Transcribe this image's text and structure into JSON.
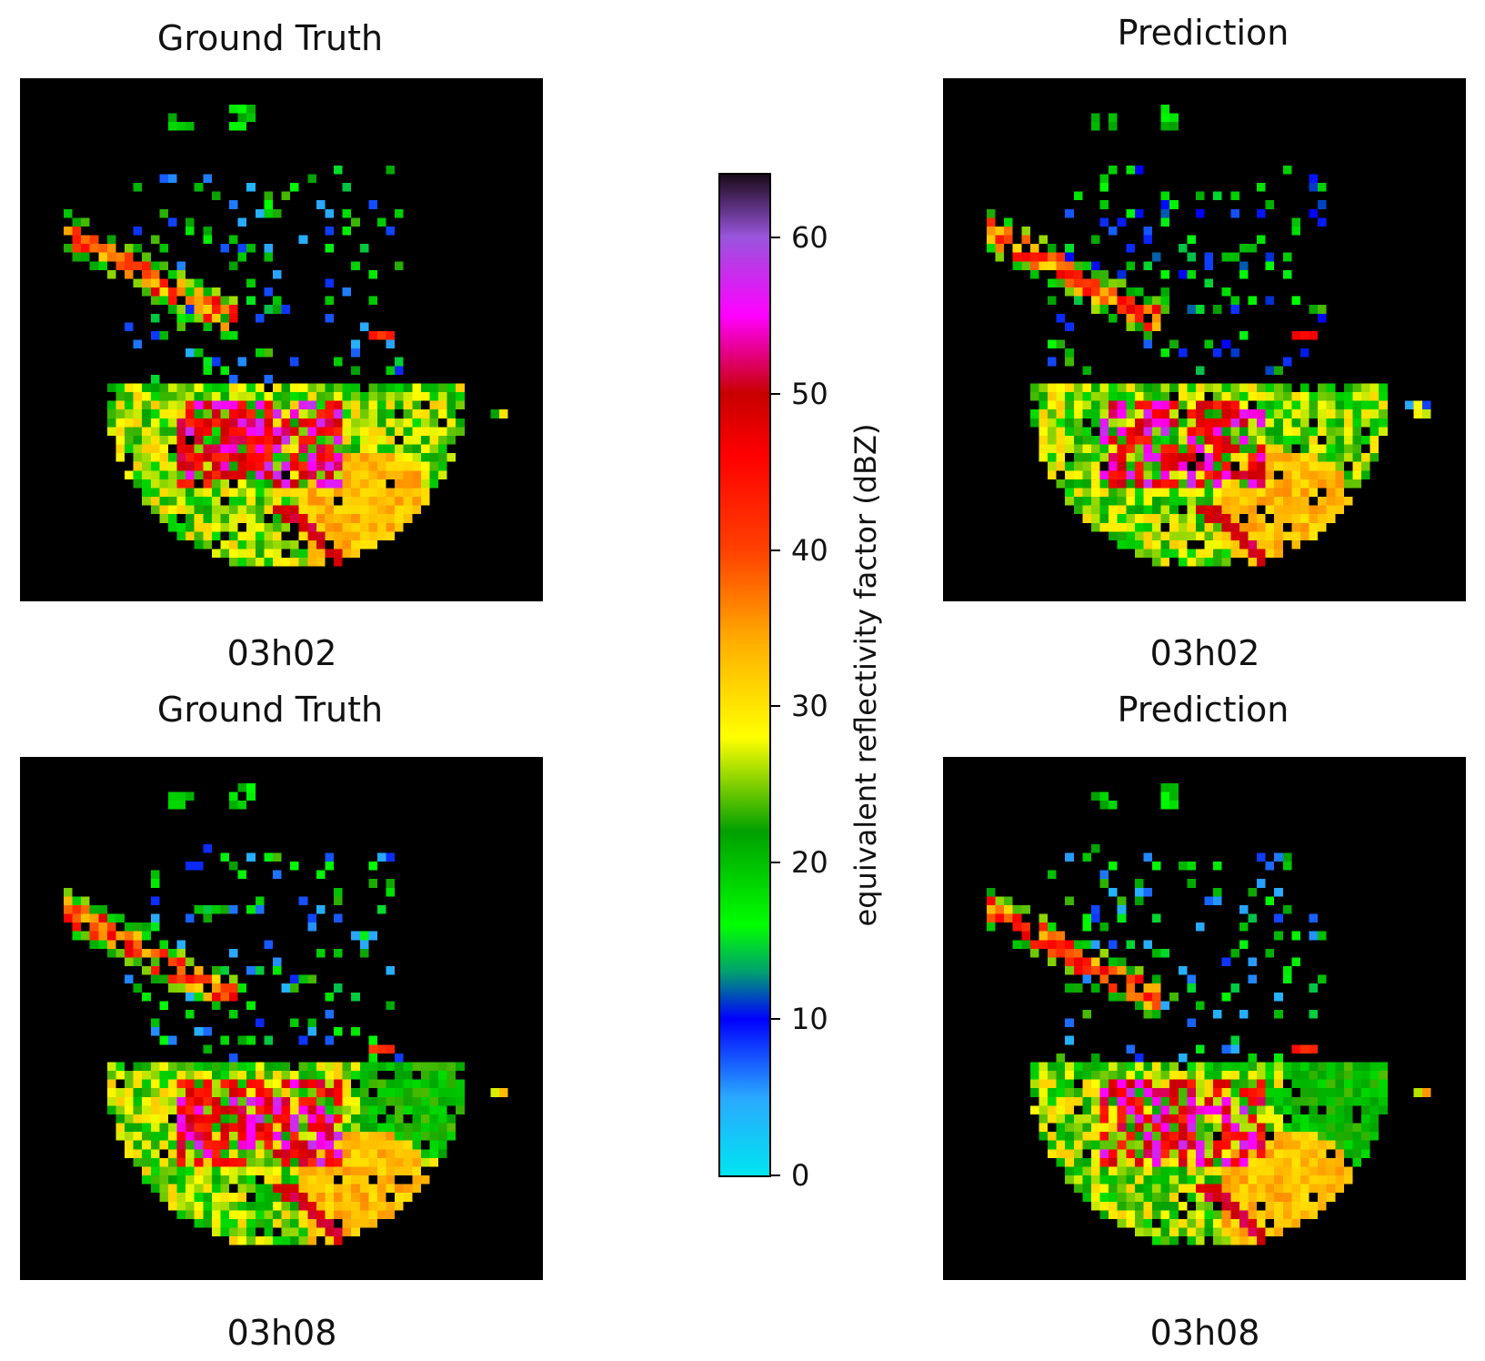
{
  "chart_data": [
    {
      "type": "heatmap",
      "title": "Ground Truth",
      "caption": "03h02",
      "colormap_description": "radar reflectivity (cyan-blue-green-yellow-orange-red-magenta-purple)"
    },
    {
      "type": "heatmap",
      "title": "Prediction",
      "caption": "03h02",
      "colormap_description": "radar reflectivity (cyan-blue-green-yellow-orange-red-magenta-purple)"
    },
    {
      "type": "heatmap",
      "title": "Ground Truth",
      "caption": "03h08",
      "colormap_description": "radar reflectivity (cyan-blue-green-yellow-orange-red-magenta-purple)"
    },
    {
      "type": "heatmap",
      "title": "Prediction",
      "caption": "03h08",
      "colormap_description": "radar reflectivity (cyan-blue-green-yellow-orange-red-magenta-purple)"
    }
  ],
  "colorbar": {
    "label": "equivalent reflectivity factor (dBZ)",
    "range": [
      0,
      64
    ],
    "ticks": [
      0,
      10,
      20,
      30,
      40,
      50,
      60
    ],
    "tick_labels": [
      "0",
      "10",
      "20",
      "30",
      "40",
      "50",
      "60"
    ],
    "stops": [
      {
        "value": 0,
        "color": "#00e5f0"
      },
      {
        "value": 5,
        "color": "#2aa8ff"
      },
      {
        "value": 10,
        "color": "#0000ff"
      },
      {
        "value": 13,
        "color": "#00a070"
      },
      {
        "value": 16,
        "color": "#00ff00"
      },
      {
        "value": 22,
        "color": "#00a000"
      },
      {
        "value": 28,
        "color": "#ffff00"
      },
      {
        "value": 34,
        "color": "#ffb000"
      },
      {
        "value": 40,
        "color": "#ff4000"
      },
      {
        "value": 46,
        "color": "#ff0000"
      },
      {
        "value": 50,
        "color": "#c80000"
      },
      {
        "value": 55,
        "color": "#ff00ff"
      },
      {
        "value": 60,
        "color": "#9955dd"
      },
      {
        "value": 64,
        "color": "#1a0a1a"
      }
    ]
  }
}
